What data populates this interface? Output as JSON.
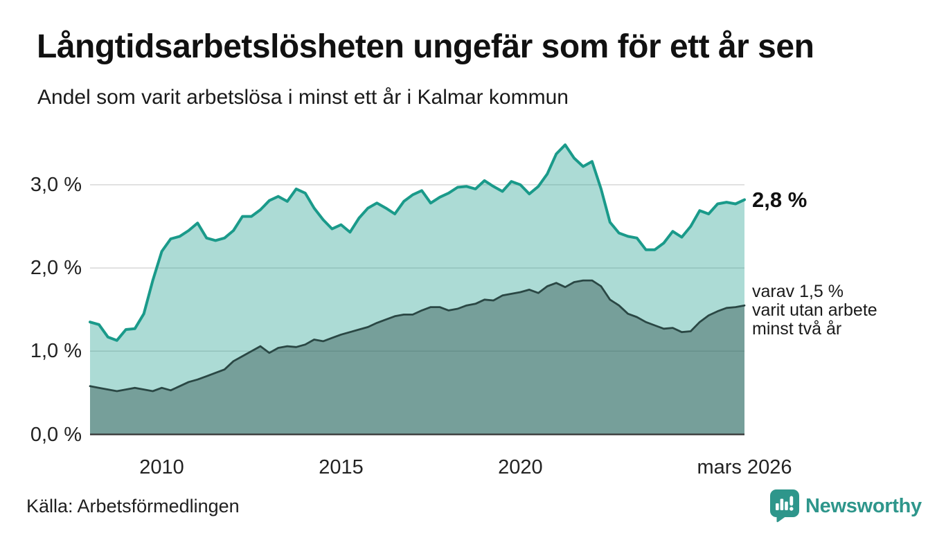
{
  "header": {
    "title": "Långtidsarbetslösheten ungefär som för ett år sen",
    "subtitle": "Andel som varit arbetslösa i minst ett år i Kalmar kommun"
  },
  "chart_data": {
    "type": "area",
    "title": "Andel som varit arbetslösa i minst ett år i Kalmar kommun",
    "xlabel": "",
    "ylabel": "",
    "x_unit": "decimal_year",
    "ylim": [
      0,
      3.6
    ],
    "grid": "horizontal",
    "x": [
      2008,
      2008.25,
      2008.5,
      2008.75,
      2009,
      2009.25,
      2009.5,
      2009.75,
      2010,
      2010.25,
      2010.5,
      2010.75,
      2011,
      2011.25,
      2011.5,
      2011.75,
      2012,
      2012.25,
      2012.5,
      2012.75,
      2013,
      2013.25,
      2013.5,
      2013.75,
      2014,
      2014.25,
      2014.5,
      2014.75,
      2015,
      2015.25,
      2015.5,
      2015.75,
      2016,
      2016.25,
      2016.5,
      2016.75,
      2017,
      2017.25,
      2017.5,
      2017.75,
      2018,
      2018.25,
      2018.5,
      2018.75,
      2019,
      2019.25,
      2019.5,
      2019.75,
      2020,
      2020.25,
      2020.5,
      2020.75,
      2021,
      2021.25,
      2021.5,
      2021.75,
      2022,
      2022.25,
      2022.5,
      2022.75,
      2023,
      2023.25,
      2023.5,
      2023.75,
      2024,
      2024.25,
      2024.5,
      2024.75,
      2025,
      2025.25,
      2025.5,
      2025.75,
      2026,
      2026.25
    ],
    "series": [
      {
        "name": "Arbetslösa minst ett år",
        "line_color": "#1a9a8a",
        "fill_color": "rgba(26,154,138,0.36)",
        "line_width": 4,
        "values": [
          1.35,
          1.32,
          1.17,
          1.13,
          1.26,
          1.27,
          1.45,
          1.85,
          2.2,
          2.35,
          2.38,
          2.45,
          2.54,
          2.36,
          2.33,
          2.36,
          2.45,
          2.62,
          2.62,
          2.7,
          2.81,
          2.86,
          2.8,
          2.95,
          2.9,
          2.72,
          2.58,
          2.47,
          2.52,
          2.43,
          2.6,
          2.72,
          2.78,
          2.72,
          2.65,
          2.8,
          2.88,
          2.93,
          2.78,
          2.85,
          2.9,
          2.97,
          2.98,
          2.95,
          3.05,
          2.98,
          2.92,
          3.04,
          3.0,
          2.89,
          2.98,
          3.13,
          3.37,
          3.48,
          3.32,
          3.22,
          3.28,
          2.95,
          2.55,
          2.42,
          2.38,
          2.36,
          2.22,
          2.22,
          2.3,
          2.44,
          2.37,
          2.5,
          2.69,
          2.65,
          2.77,
          2.79,
          2.77,
          2.82
        ]
      },
      {
        "name": "Varav utan arbete minst två år",
        "line_color": "#2a4744",
        "fill_color": "rgba(42,77,73,0.42)",
        "line_width": 2.8,
        "values": [
          0.58,
          0.56,
          0.54,
          0.52,
          0.54,
          0.56,
          0.54,
          0.52,
          0.56,
          0.53,
          0.58,
          0.63,
          0.66,
          0.7,
          0.74,
          0.78,
          0.88,
          0.94,
          1.0,
          1.06,
          0.98,
          1.04,
          1.06,
          1.05,
          1.08,
          1.14,
          1.12,
          1.16,
          1.2,
          1.23,
          1.26,
          1.29,
          1.34,
          1.38,
          1.42,
          1.44,
          1.44,
          1.49,
          1.53,
          1.53,
          1.49,
          1.51,
          1.55,
          1.57,
          1.62,
          1.61,
          1.67,
          1.69,
          1.71,
          1.74,
          1.7,
          1.78,
          1.82,
          1.77,
          1.83,
          1.85,
          1.85,
          1.78,
          1.62,
          1.55,
          1.45,
          1.41,
          1.35,
          1.31,
          1.27,
          1.28,
          1.23,
          1.24,
          1.35,
          1.43,
          1.48,
          1.52,
          1.53,
          1.55
        ]
      }
    ],
    "yticks": [
      {
        "value": 0,
        "label": "0,0 %"
      },
      {
        "value": 1,
        "label": "1,0 %"
      },
      {
        "value": 2,
        "label": "2,0 %"
      },
      {
        "value": 3,
        "label": "3,0 %"
      }
    ],
    "xticks": [
      {
        "value": 2010,
        "label": "2010"
      },
      {
        "value": 2015,
        "label": "2015"
      },
      {
        "value": 2020,
        "label": "2020"
      },
      {
        "value": 2026.25,
        "label": "mars 2026"
      }
    ],
    "end_labels": {
      "primary": "2,8 %",
      "secondary": "varav 1,5 %\nvarit utan arbete\nminst två år"
    },
    "legend_position": "none"
  },
  "colors": {
    "series1_line": "#1a9a8a",
    "series2_line": "#2a4744",
    "gridline": "#d8d8d8",
    "axis_line": "#333333",
    "brand_teal": "#2e968b"
  },
  "footer": {
    "source": "Källa: Arbetsförmedlingen",
    "brand": "Newsworthy"
  }
}
